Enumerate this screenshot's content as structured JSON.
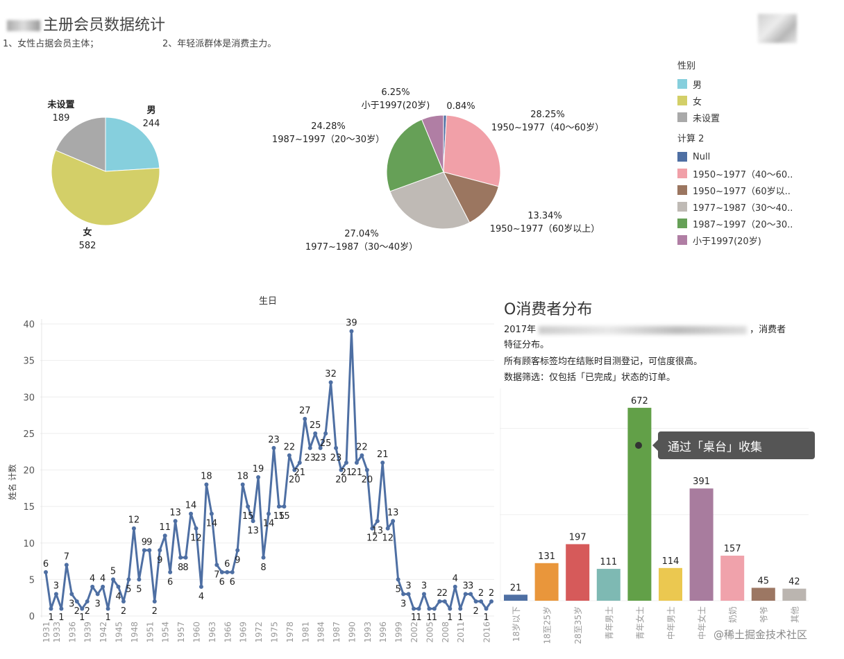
{
  "header": {
    "title": "主册会员数据统计",
    "note1": "1、女性占据会员主体；",
    "note2": "2、年轻派群体是消费主力。"
  },
  "legend": {
    "gender_title": "性别",
    "gender_items": [
      {
        "label": "男",
        "color": "#86CFDD"
      },
      {
        "label": "女",
        "color": "#D3CF68"
      },
      {
        "label": "未设置",
        "color": "#A9A9A9"
      }
    ],
    "age_title": "计算 2",
    "age_items": [
      {
        "label": "Null",
        "color": "#4E6FA3"
      },
      {
        "label": "1950~1977（40～60..",
        "color": "#F1A0A8"
      },
      {
        "label": "1950~1977（60岁以..",
        "color": "#9B7660"
      },
      {
        "label": "1977~1987（30～40..",
        "color": "#BFBAB5"
      },
      {
        "label": "1987~1997（20～30..",
        "color": "#66A057"
      },
      {
        "label": "小于1997(20岁)",
        "color": "#B07EA4"
      }
    ]
  },
  "chart_data": [
    {
      "type": "pie",
      "labels": [
        "男",
        "未设置",
        "女"
      ],
      "values": [
        244,
        189,
        582
      ],
      "colors": [
        "#86CFDD",
        "#A9A9A9",
        "#D3CF68"
      ]
    },
    {
      "type": "pie",
      "labels": [
        "Null",
        "1950~1977（40～60岁）",
        "1950~1977（60岁以上）",
        "1977~1987（30～40岁）",
        "1987~1997（20～30岁）",
        "小于1997(20岁)"
      ],
      "values": [
        0.84,
        28.25,
        13.34,
        27.04,
        24.28,
        6.25
      ],
      "value_labels": [
        "0.84%",
        "28.25%",
        "13.34%",
        "27.04%",
        "24.28%",
        "6.25%"
      ],
      "colors": [
        "#4E6FA3",
        "#F1A0A8",
        "#9B7660",
        "#BFBAB5",
        "#66A057",
        "#B07EA4"
      ]
    },
    {
      "type": "line",
      "title": "生日",
      "ylabel": "姓名 计数",
      "ylim": [
        0,
        40
      ],
      "yticks": [
        0,
        5,
        10,
        15,
        20,
        25,
        30,
        35,
        40
      ],
      "x": [
        1931,
        1932,
        1933,
        1934,
        1935,
        1936,
        1937,
        1938,
        1939,
        1940,
        1941,
        1942,
        1943,
        1944,
        1945,
        1946,
        1947,
        1948,
        1949,
        1950,
        1951,
        1952,
        1953,
        1954,
        1955,
        1956,
        1957,
        1958,
        1959,
        1960,
        1961,
        1962,
        1963,
        1964,
        1965,
        1966,
        1967,
        1968,
        1969,
        1970,
        1971,
        1972,
        1973,
        1974,
        1975,
        1976,
        1977,
        1978,
        1979,
        1980,
        1981,
        1982,
        1983,
        1984,
        1985,
        1986,
        1987,
        1988,
        1989,
        1990,
        1991,
        1992,
        1993,
        1994,
        1995,
        1996,
        1997,
        1998,
        1999,
        2000,
        2001,
        2002,
        2003,
        2004,
        2005,
        2006,
        2007,
        2008,
        2009,
        2010,
        2011,
        2012,
        2013,
        2014,
        2015,
        2016,
        2017
      ],
      "values": [
        6,
        1,
        3,
        1,
        7,
        3,
        2,
        1,
        2,
        4,
        3,
        4,
        1,
        5,
        4,
        2,
        5,
        12,
        5,
        9,
        9,
        2,
        9,
        11,
        6,
        13,
        8,
        8,
        14,
        12,
        4,
        18,
        14,
        7,
        6,
        6,
        6,
        9,
        18,
        15,
        13,
        19,
        8,
        14,
        23,
        15,
        15,
        22,
        20,
        21,
        27,
        23,
        25,
        23,
        25,
        32,
        23,
        20,
        21,
        39,
        21,
        22,
        20,
        12,
        13,
        21,
        12,
        13,
        5,
        3,
        3,
        1,
        1,
        3,
        1,
        1,
        2,
        2,
        1,
        4,
        1,
        3,
        3,
        2,
        2,
        1,
        2
      ],
      "xticks": [
        1931,
        1933,
        1936,
        1939,
        1942,
        1945,
        1948,
        1951,
        1954,
        1957,
        1960,
        1963,
        1966,
        1969,
        1972,
        1975,
        1978,
        1981,
        1984,
        1987,
        1990,
        1993,
        1996,
        1999,
        2002,
        2005,
        2008,
        2011,
        2016
      ]
    },
    {
      "type": "bar",
      "title": "O消费者分布",
      "categories": [
        "18岁以下",
        "18至25岁",
        "28至35岁",
        "青年男士",
        "青年女士",
        "中年男士",
        "中年女士",
        "奶奶",
        "爷爷",
        "其他"
      ],
      "values": [
        21,
        131,
        197,
        111,
        672,
        114,
        391,
        157,
        45,
        42
      ],
      "colors": [
        "#4E6FA3",
        "#E9963B",
        "#D65A5A",
        "#7EB9B3",
        "#62A048",
        "#EBC850",
        "#A87C9E",
        "#F0A2AB",
        "#9C7763",
        "#BBB5B0"
      ],
      "ylim": [
        0,
        720
      ]
    }
  ],
  "consumer": {
    "line1_pre": "2017年",
    "line1_post": "，消费者",
    "line2": "特征分布。",
    "line3": "所有顾客标签均在结账时目测登记，可信度很高。",
    "line4": "数据筛选：仅包括「已完成」状态的订单。",
    "tooltip": "通过「桌台」收集"
  },
  "watermark": "@稀土掘金技术社区"
}
